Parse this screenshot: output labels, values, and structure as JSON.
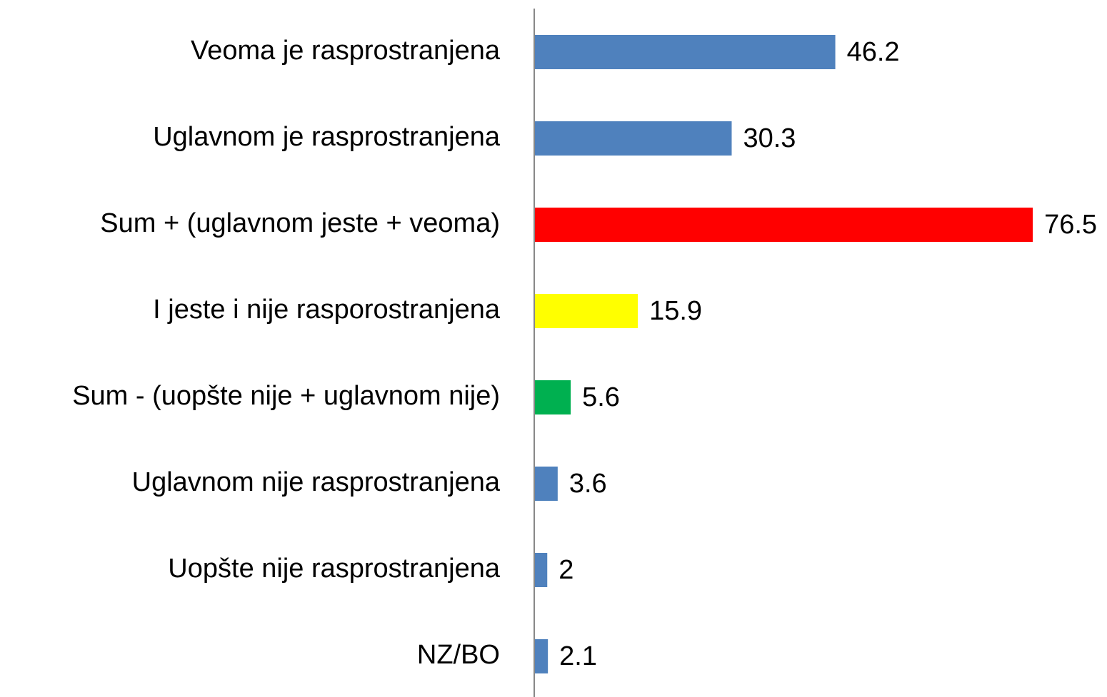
{
  "chart_data": {
    "type": "hbar",
    "categories": [
      "Veoma je rasprostranjena",
      "Uglavnom je rasprostranjena",
      "Sum + (uglavnom jeste + veoma)",
      "I jeste i nije rasporostranjena",
      "Sum - (uopšte nije + uglavnom nije)",
      "Uglavnom nije rasprostranjena",
      "Uopšte nije rasprostranjena",
      "NZ/BO"
    ],
    "values": [
      46.2,
      30.3,
      76.5,
      15.9,
      5.6,
      3.6,
      2,
      2.1
    ],
    "colors": [
      "#4f81bd",
      "#4f81bd",
      "#ff0000",
      "#ffff00",
      "#00b050",
      "#4f81bd",
      "#4f81bd",
      "#4f81bd"
    ],
    "xlim": [
      0,
      80
    ]
  }
}
